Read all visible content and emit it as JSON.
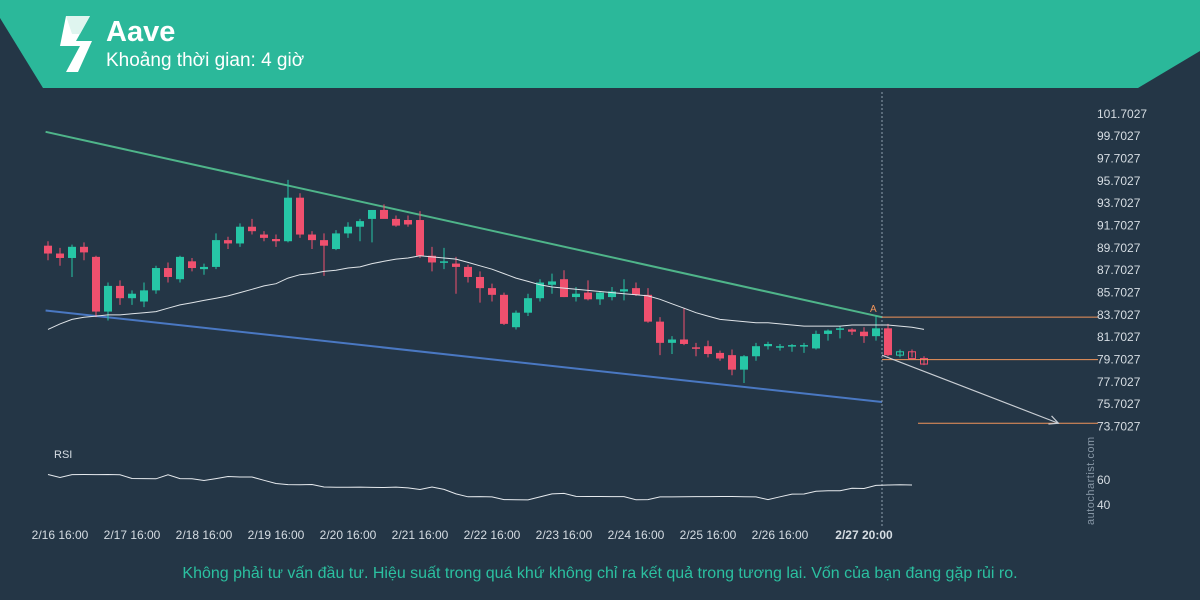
{
  "header": {
    "title": "Aave",
    "subtitle": "Khoảng thời gian: 4 giờ"
  },
  "disclaimer": "Không phải tư vấn đầu tư. Hiệu suất trong quá khứ không chỉ ra kết quả trong tương lai. Vốn của bạn đang gặp rủi ro.",
  "watermark": "autochartist.com",
  "colors": {
    "background": "#243646",
    "banner": "#2bb89a",
    "bullish": "#26c6a6",
    "bearish": "#f0506e",
    "resistance": "#4fb58a",
    "support": "#4a78c2",
    "level": "#f0945a",
    "projection": "#c9ced4"
  },
  "chart_data": [
    {
      "type": "candlestick",
      "title": "",
      "timeframe": "4 giờ",
      "y_ticks": [
        "101.7027",
        "99.7027",
        "97.7027",
        "95.7027",
        "93.7027",
        "91.7027",
        "89.7027",
        "87.7027",
        "85.7027",
        "83.7027",
        "81.7027",
        "79.7027",
        "77.7027",
        "75.7027",
        "73.7027"
      ],
      "ylim": [
        72.5,
        102.5
      ],
      "x_ticks": [
        "2/16 16:00",
        "2/17 16:00",
        "2/18 16:00",
        "2/19 16:00",
        "2/20 16:00",
        "2/21 16:00",
        "2/22 16:00",
        "2/23 16:00",
        "2/24 16:00",
        "2/25 16:00",
        "2/26 16:00",
        "2/27 20:00"
      ],
      "x_tick_index": [
        1,
        7,
        13,
        19,
        25,
        31,
        37,
        43,
        49,
        55,
        61,
        68
      ],
      "candles": [
        {
          "o": 89.9,
          "h": 90.3,
          "l": 88.6,
          "c": 89.2
        },
        {
          "o": 89.2,
          "h": 89.7,
          "l": 88.1,
          "c": 88.8
        },
        {
          "o": 88.8,
          "h": 90.0,
          "l": 87.1,
          "c": 89.8
        },
        {
          "o": 89.8,
          "h": 90.2,
          "l": 88.6,
          "c": 89.3
        },
        {
          "o": 88.9,
          "h": 89.0,
          "l": 83.5,
          "c": 84.0
        },
        {
          "o": 84.0,
          "h": 86.6,
          "l": 83.2,
          "c": 86.3
        },
        {
          "o": 86.3,
          "h": 86.8,
          "l": 84.6,
          "c": 85.2
        },
        {
          "o": 85.2,
          "h": 85.9,
          "l": 84.6,
          "c": 85.6
        },
        {
          "o": 84.9,
          "h": 86.6,
          "l": 84.4,
          "c": 85.9
        },
        {
          "o": 85.9,
          "h": 88.1,
          "l": 85.6,
          "c": 87.9
        },
        {
          "o": 87.9,
          "h": 88.4,
          "l": 86.6,
          "c": 87.1
        },
        {
          "o": 86.9,
          "h": 89.0,
          "l": 86.6,
          "c": 88.9
        },
        {
          "o": 88.5,
          "h": 88.8,
          "l": 87.6,
          "c": 87.9
        },
        {
          "o": 87.8,
          "h": 88.3,
          "l": 87.3,
          "c": 88.0
        },
        {
          "o": 88.0,
          "h": 91.0,
          "l": 87.8,
          "c": 90.4
        },
        {
          "o": 90.4,
          "h": 90.7,
          "l": 89.6,
          "c": 90.1
        },
        {
          "o": 90.1,
          "h": 91.9,
          "l": 89.8,
          "c": 91.6
        },
        {
          "o": 91.6,
          "h": 92.3,
          "l": 90.9,
          "c": 91.2
        },
        {
          "o": 90.9,
          "h": 91.2,
          "l": 90.3,
          "c": 90.6
        },
        {
          "o": 90.5,
          "h": 90.9,
          "l": 89.8,
          "c": 90.3
        },
        {
          "o": 90.3,
          "h": 95.8,
          "l": 90.2,
          "c": 94.2
        },
        {
          "o": 94.2,
          "h": 94.6,
          "l": 90.6,
          "c": 90.9
        },
        {
          "o": 90.9,
          "h": 91.2,
          "l": 89.6,
          "c": 90.4
        },
        {
          "o": 90.4,
          "h": 91.0,
          "l": 87.2,
          "c": 89.9
        },
        {
          "o": 89.6,
          "h": 91.3,
          "l": 89.5,
          "c": 91.0
        },
        {
          "o": 91.0,
          "h": 92.0,
          "l": 90.6,
          "c": 91.6
        },
        {
          "o": 91.6,
          "h": 92.3,
          "l": 90.3,
          "c": 92.1
        },
        {
          "o": 92.3,
          "h": 92.9,
          "l": 90.2,
          "c": 93.1
        },
        {
          "o": 93.1,
          "h": 93.6,
          "l": 92.6,
          "c": 92.3
        },
        {
          "o": 92.3,
          "h": 92.6,
          "l": 91.6,
          "c": 91.7
        },
        {
          "o": 92.2,
          "h": 92.6,
          "l": 91.6,
          "c": 91.8
        },
        {
          "o": 92.2,
          "h": 93.0,
          "l": 88.8,
          "c": 89.0
        },
        {
          "o": 89.0,
          "h": 89.8,
          "l": 87.6,
          "c": 88.4
        },
        {
          "o": 88.4,
          "h": 89.7,
          "l": 87.8,
          "c": 88.5
        },
        {
          "o": 88.3,
          "h": 88.9,
          "l": 85.6,
          "c": 88.0
        },
        {
          "o": 88.0,
          "h": 88.2,
          "l": 86.6,
          "c": 87.1
        },
        {
          "o": 87.1,
          "h": 87.6,
          "l": 84.8,
          "c": 86.1
        },
        {
          "o": 86.1,
          "h": 86.5,
          "l": 84.9,
          "c": 85.5
        },
        {
          "o": 85.5,
          "h": 85.7,
          "l": 82.8,
          "c": 82.9
        },
        {
          "o": 82.6,
          "h": 84.1,
          "l": 82.4,
          "c": 83.9
        },
        {
          "o": 83.9,
          "h": 85.6,
          "l": 83.6,
          "c": 85.2
        },
        {
          "o": 85.2,
          "h": 86.9,
          "l": 84.9,
          "c": 86.6
        },
        {
          "o": 86.4,
          "h": 87.4,
          "l": 85.6,
          "c": 86.7
        },
        {
          "o": 86.9,
          "h": 87.7,
          "l": 85.3,
          "c": 85.3
        },
        {
          "o": 85.3,
          "h": 86.2,
          "l": 84.9,
          "c": 85.6
        },
        {
          "o": 85.7,
          "h": 86.8,
          "l": 85.0,
          "c": 85.1
        },
        {
          "o": 85.1,
          "h": 85.8,
          "l": 84.6,
          "c": 85.7
        },
        {
          "o": 85.3,
          "h": 86.2,
          "l": 85.0,
          "c": 85.8
        },
        {
          "o": 85.8,
          "h": 86.9,
          "l": 85.0,
          "c": 86.0
        },
        {
          "o": 86.1,
          "h": 86.6,
          "l": 85.4,
          "c": 85.5
        },
        {
          "o": 85.5,
          "h": 86.1,
          "l": 83.0,
          "c": 83.1
        },
        {
          "o": 83.1,
          "h": 83.5,
          "l": 80.1,
          "c": 81.2
        },
        {
          "o": 81.2,
          "h": 81.8,
          "l": 80.2,
          "c": 81.5
        },
        {
          "o": 81.5,
          "h": 84.3,
          "l": 81.0,
          "c": 81.1
        },
        {
          "o": 80.8,
          "h": 81.2,
          "l": 80.0,
          "c": 80.7
        },
        {
          "o": 80.9,
          "h": 81.4,
          "l": 79.9,
          "c": 80.2
        },
        {
          "o": 80.3,
          "h": 80.5,
          "l": 79.6,
          "c": 79.8
        },
        {
          "o": 80.1,
          "h": 80.6,
          "l": 78.3,
          "c": 78.8
        },
        {
          "o": 78.8,
          "h": 80.1,
          "l": 77.6,
          "c": 80.0
        },
        {
          "o": 80.0,
          "h": 81.2,
          "l": 79.6,
          "c": 80.9
        },
        {
          "o": 80.9,
          "h": 81.3,
          "l": 80.6,
          "c": 81.1
        },
        {
          "o": 80.9,
          "h": 81.1,
          "l": 80.5,
          "c": 80.9
        },
        {
          "o": 80.9,
          "h": 81.1,
          "l": 80.4,
          "c": 81.0
        },
        {
          "o": 80.9,
          "h": 81.2,
          "l": 80.3,
          "c": 81.0
        },
        {
          "o": 80.7,
          "h": 82.3,
          "l": 80.6,
          "c": 82.0
        },
        {
          "o": 82.0,
          "h": 82.4,
          "l": 81.4,
          "c": 82.3
        },
        {
          "o": 82.4,
          "h": 82.7,
          "l": 81.6,
          "c": 82.5
        },
        {
          "o": 82.4,
          "h": 82.5,
          "l": 81.9,
          "c": 82.2
        },
        {
          "o": 82.2,
          "h": 82.6,
          "l": 81.2,
          "c": 81.8
        },
        {
          "o": 81.8,
          "h": 83.6,
          "l": 81.4,
          "c": 82.5
        },
        {
          "o": 82.5,
          "h": 82.9,
          "l": 80.0,
          "c": 80.1
        }
      ],
      "projection_candles": [
        {
          "o": 80.1,
          "h": 80.6,
          "l": 79.9,
          "c": 80.4
        },
        {
          "o": 80.4,
          "h": 80.6,
          "l": 79.9,
          "c": 79.8
        },
        {
          "o": 79.8,
          "h": 80.0,
          "l": 79.2,
          "c": 79.3
        }
      ],
      "moving_average": [
        82.4,
        82.9,
        83.3,
        83.5,
        83.6,
        83.7,
        83.7,
        83.8,
        83.9,
        84.0,
        84.3,
        84.6,
        84.8,
        85.0,
        85.2,
        85.4,
        85.7,
        86.0,
        86.3,
        86.5,
        87.0,
        87.3,
        87.4,
        87.6,
        87.7,
        87.9,
        88.0,
        88.3,
        88.5,
        88.7,
        88.8,
        89.0,
        88.9,
        88.8,
        88.7,
        88.4,
        88.1,
        87.8,
        87.4,
        87.0,
        86.7,
        86.4,
        86.2,
        86.1,
        86.0,
        85.9,
        85.8,
        85.7,
        85.6,
        85.5,
        85.4,
        85.1,
        84.7,
        84.3,
        83.9,
        83.6,
        83.3,
        83.2,
        83.1,
        83.0,
        83.0,
        82.9,
        82.8,
        82.7,
        82.7,
        82.7,
        82.7,
        82.8,
        82.8,
        82.8,
        82.8,
        82.7,
        82.6,
        82.4
      ],
      "resistance_line": {
        "from": {
          "i": -0.2,
          "price": 100.1
        },
        "to": {
          "i": 69.5,
          "price": 83.5
        },
        "label": "A"
      },
      "support_line": {
        "from": {
          "i": -0.2,
          "price": 84.1
        },
        "to": {
          "i": 69.5,
          "price": 75.9
        }
      },
      "levels": [
        {
          "price": 83.5,
          "from_i": 69.5,
          "to_i": 87.5
        },
        {
          "price": 79.7,
          "from_i": 69.5,
          "to_i": 87.5
        },
        {
          "price": 74.0,
          "from_i": 72.5,
          "to_i": 87.5
        }
      ],
      "projection": {
        "from": {
          "i": 69.5,
          "price": 80.1
        },
        "to": {
          "i": 84.2,
          "price": 74.0
        }
      },
      "current_marker_index": 69.5
    },
    {
      "type": "line",
      "title": "RSI",
      "y_ticks": [
        "60",
        "40"
      ],
      "ylim": [
        32,
        72
      ],
      "values": [
        64.4,
        62.0,
        64.3,
        64.4,
        64.3,
        64.4,
        64.2,
        61.2,
        61.1,
        61.0,
        64.2,
        61.1,
        61.0,
        59.6,
        61.1,
        62.8,
        62.4,
        62.4,
        59.8,
        57.2,
        56.3,
        56.2,
        56.4,
        54.4,
        54.2,
        54.2,
        54.3,
        54.1,
        54.0,
        54.3,
        53.7,
        52.4,
        54.4,
        52.5,
        48.9,
        46.6,
        46.7,
        46.5,
        44.3,
        44.2,
        44.1,
        46.5,
        48.9,
        49.3,
        46.9,
        46.8,
        46.8,
        46.7,
        46.7,
        44.2,
        44.3,
        46.5,
        46.5,
        46.6,
        46.7,
        46.7,
        46.8,
        46.8,
        46.6,
        46.5,
        44.3,
        46.6,
        48.7,
        48.8,
        51.0,
        51.4,
        51.4,
        53.4,
        53.2,
        55.7,
        56.0,
        56.2,
        56.0
      ]
    }
  ]
}
